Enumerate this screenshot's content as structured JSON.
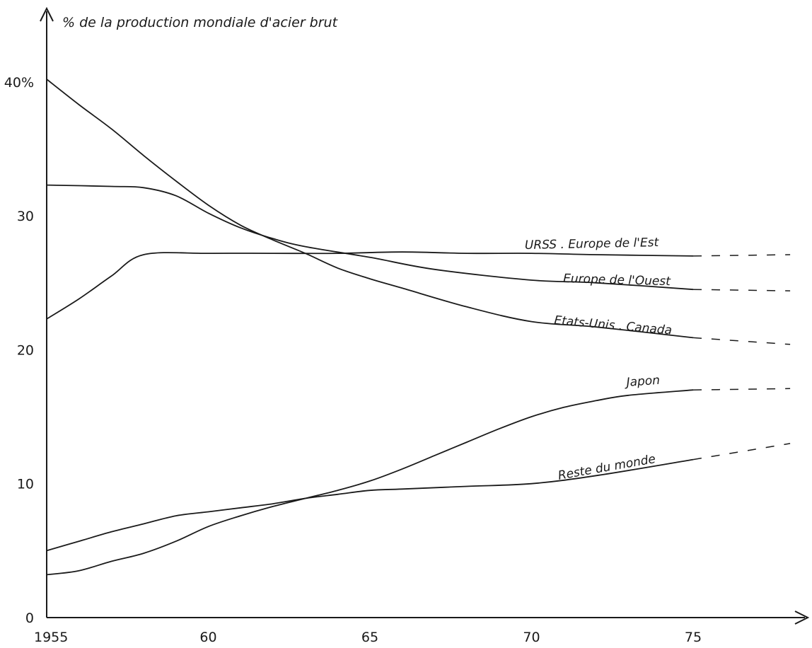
{
  "chart_data": {
    "type": "line",
    "title": "% de la production mondiale d'acier brut",
    "xlabel": "",
    "ylabel": "",
    "xlim": [
      1955,
      1978
    ],
    "ylim": [
      0,
      40
    ],
    "x_ticks": [
      1955,
      1960,
      1965,
      1970,
      1975
    ],
    "x_tick_labels": [
      "1955",
      "60",
      "65",
      "70",
      "75"
    ],
    "y_ticks": [
      0,
      10,
      20,
      30,
      40
    ],
    "y_tick_labels": [
      "0",
      "10",
      "20",
      "30",
      "40%"
    ],
    "grid": false,
    "dashed_projection_from": 1975,
    "series": [
      {
        "name": "URSS . Europe de l'Est",
        "x": [
          1955,
          1956,
          1957,
          1958,
          1960,
          1962,
          1964,
          1966,
          1968,
          1970,
          1972,
          1975,
          1978
        ],
        "values": [
          22.3,
          23.8,
          25.5,
          27.1,
          27.2,
          27.2,
          27.2,
          27.3,
          27.2,
          27.2,
          27.1,
          27.0,
          27.1
        ]
      },
      {
        "name": "Europe de l'Ouest",
        "x": [
          1955,
          1957,
          1958,
          1959,
          1960,
          1961,
          1962,
          1963,
          1965,
          1967,
          1970,
          1972,
          1975,
          1978
        ],
        "values": [
          32.3,
          32.2,
          32.1,
          31.5,
          30.2,
          29.1,
          28.3,
          27.7,
          26.9,
          26.0,
          25.2,
          25.0,
          24.5,
          24.4
        ]
      },
      {
        "name": "Etats-Unis . Canada",
        "x": [
          1955,
          1956,
          1957,
          1958,
          1959,
          1960,
          1961,
          1962,
          1963,
          1964,
          1965,
          1966,
          1968,
          1970,
          1972,
          1975,
          1978
        ],
        "values": [
          40.2,
          38.3,
          36.5,
          34.5,
          32.6,
          30.8,
          29.3,
          28.2,
          27.2,
          26.1,
          25.3,
          24.6,
          23.2,
          22.1,
          21.7,
          20.9,
          20.4
        ]
      },
      {
        "name": "Japon",
        "x": [
          1955,
          1956,
          1957,
          1958,
          1959,
          1960,
          1961,
          1962,
          1963,
          1964,
          1965,
          1966,
          1967,
          1968,
          1969,
          1970,
          1971,
          1972,
          1973,
          1975,
          1978
        ],
        "values": [
          3.2,
          3.5,
          4.2,
          4.8,
          5.7,
          6.8,
          7.6,
          8.3,
          8.9,
          9.5,
          10.2,
          11.1,
          12.1,
          13.1,
          14.1,
          15.0,
          15.7,
          16.2,
          16.6,
          17.0,
          17.1
        ]
      },
      {
        "name": "Reste du monde",
        "x": [
          1955,
          1956,
          1957,
          1958,
          1959,
          1960,
          1961,
          1962,
          1963,
          1964,
          1965,
          1966,
          1968,
          1970,
          1972,
          1975,
          1978
        ],
        "values": [
          5.0,
          5.7,
          6.4,
          7.0,
          7.6,
          7.9,
          8.2,
          8.5,
          8.9,
          9.2,
          9.5,
          9.6,
          9.8,
          10.0,
          10.6,
          11.8,
          13.0
        ]
      }
    ]
  }
}
